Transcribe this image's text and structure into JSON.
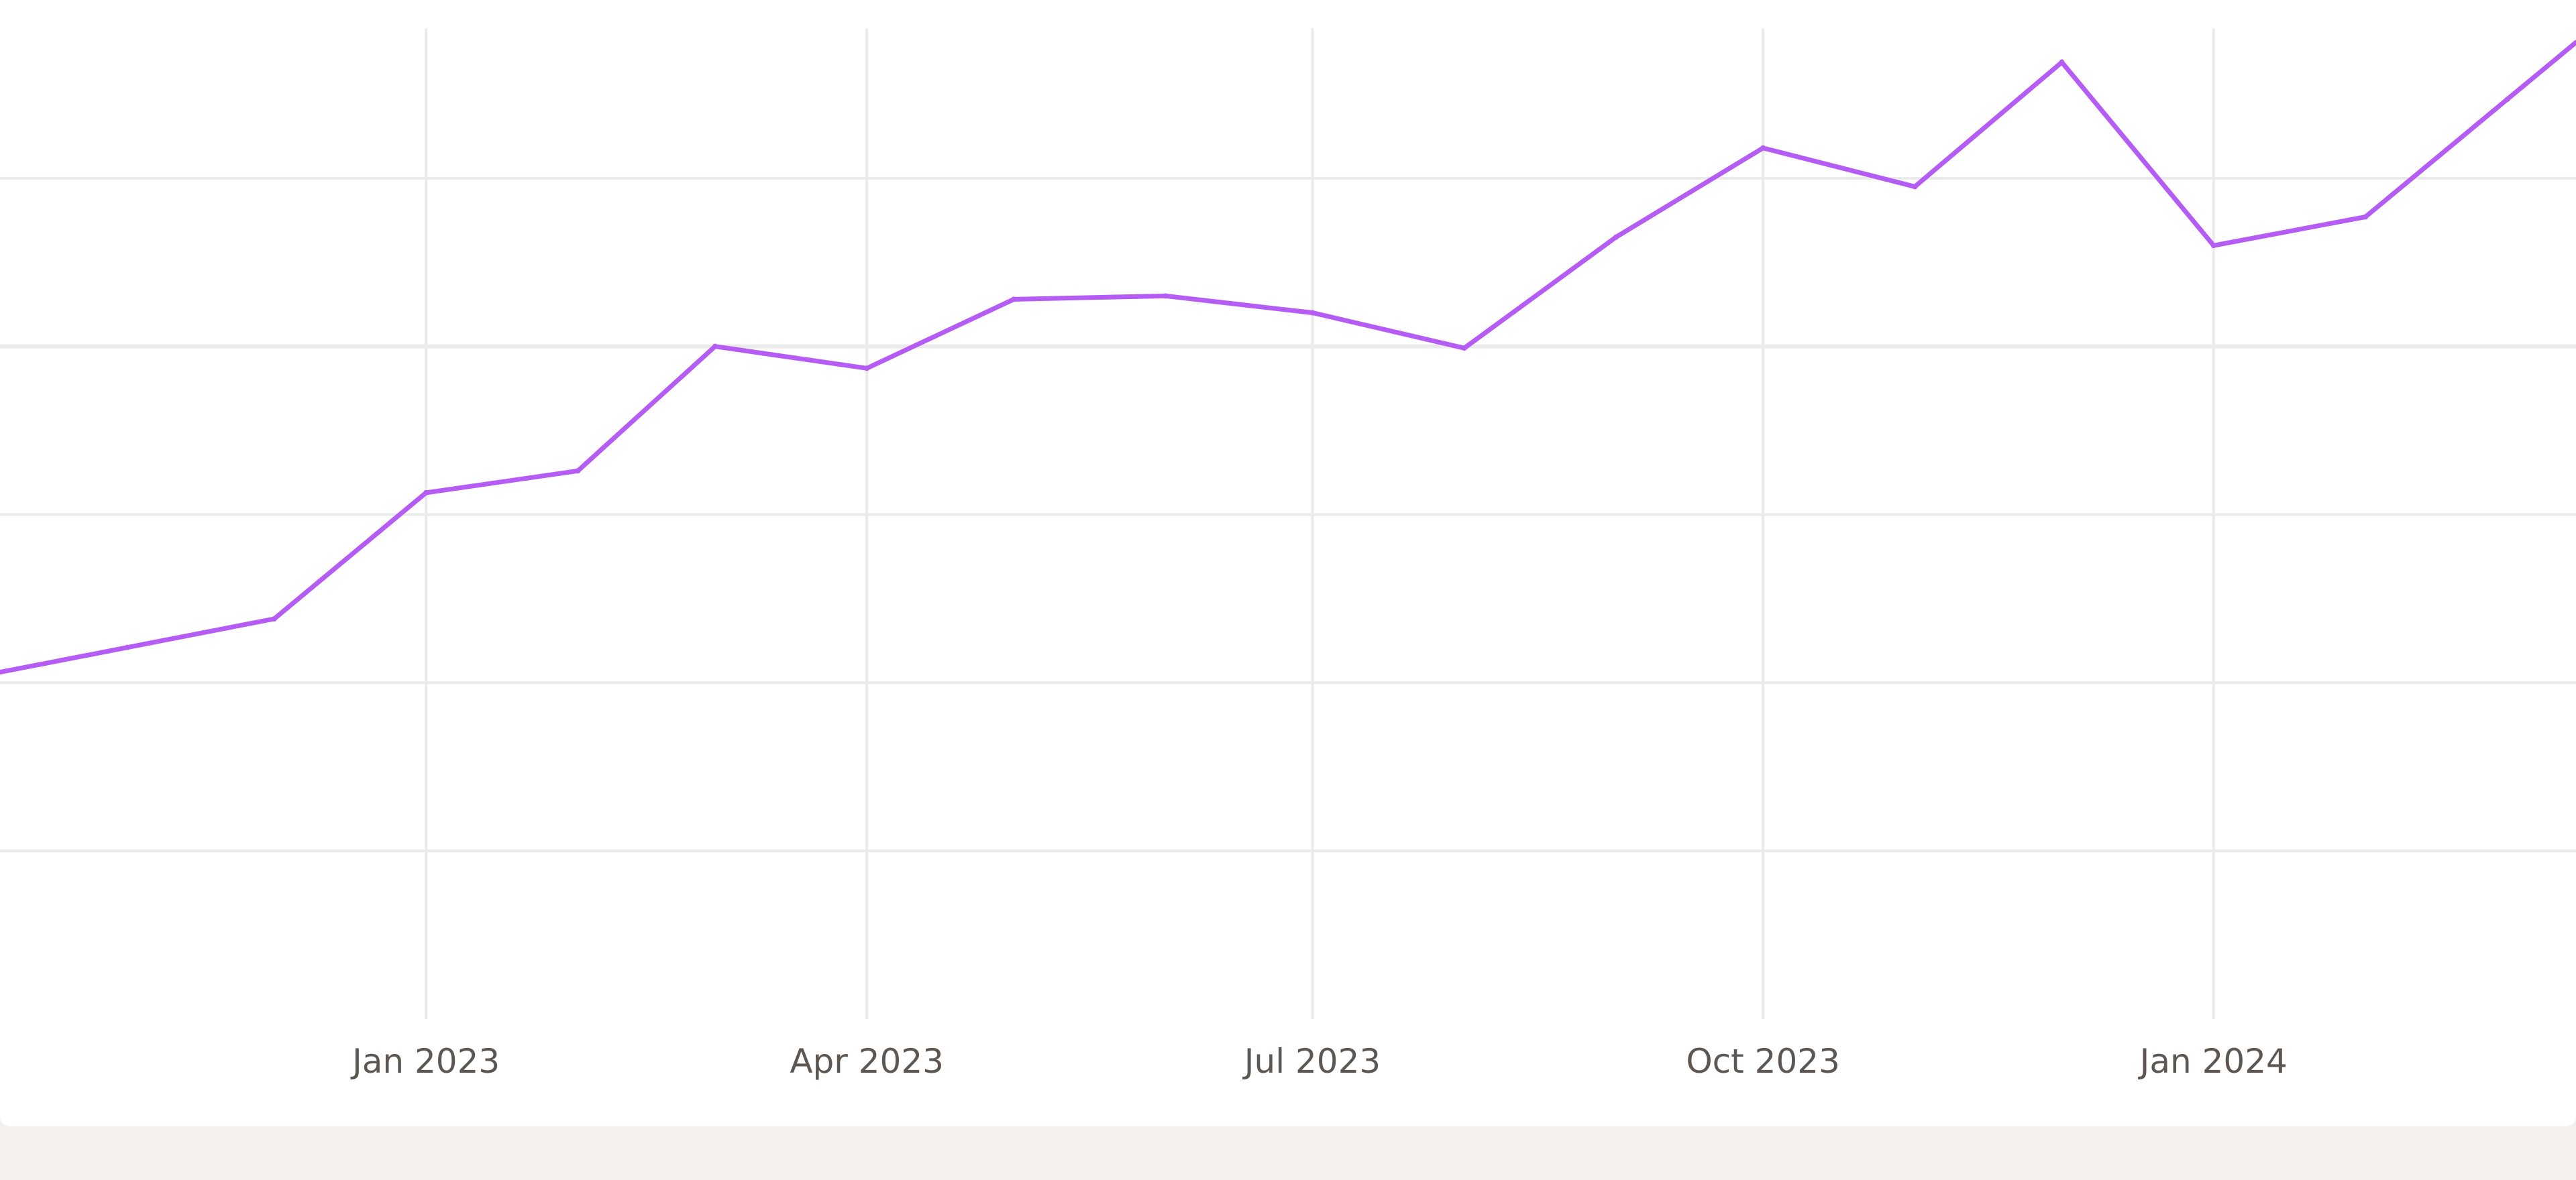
{
  "chart_data": {
    "type": "line",
    "title": "",
    "xlabel": "",
    "ylabel": "",
    "x_axis": {
      "type": "date",
      "range": [
        "2022-10-06",
        "2024-03-15"
      ],
      "tick_labels": [
        {
          "date": "2023-01-01",
          "label": "Jan 2023"
        },
        {
          "date": "2023-04-01",
          "label": "Apr 2023"
        },
        {
          "date": "2023-07-01",
          "label": "Jul 2023"
        },
        {
          "date": "2023-10-01",
          "label": "Oct 2023"
        },
        {
          "date": "2024-01-01",
          "label": "Jan 2024"
        }
      ]
    },
    "y_axis": {
      "range": [
        0,
        6
      ],
      "gridlines": [
        1,
        2,
        3,
        4,
        5
      ],
      "tick_labels_visible": false
    },
    "grid": true,
    "legend": "none",
    "colors": {
      "line": "#b55cf5",
      "grid": "#ebebeb",
      "background": "#ffffff",
      "page": "#f3f0ed"
    },
    "series": [
      {
        "points": [
          {
            "x": "2022-11-01",
            "y": 2.21
          },
          {
            "x": "2022-12-01",
            "y": 2.38
          },
          {
            "x": "2023-01-01",
            "y": 3.13
          },
          {
            "x": "2023-02-01",
            "y": 3.26
          },
          {
            "x": "2023-03-01",
            "y": 4.0
          },
          {
            "x": "2023-04-01",
            "y": 3.87
          },
          {
            "x": "2023-05-01",
            "y": 4.28
          },
          {
            "x": "2023-06-01",
            "y": 4.3
          },
          {
            "x": "2023-07-01",
            "y": 4.2
          },
          {
            "x": "2023-08-01",
            "y": 3.99
          },
          {
            "x": "2023-09-01",
            "y": 4.65
          },
          {
            "x": "2023-10-01",
            "y": 5.18
          },
          {
            "x": "2023-11-01",
            "y": 4.95
          },
          {
            "x": "2023-12-01",
            "y": 5.69
          },
          {
            "x": "2024-01-01",
            "y": 4.6
          },
          {
            "x": "2024-02-01",
            "y": 4.77
          },
          {
            "x": "2024-03-01",
            "y": 5.47
          }
        ]
      }
    ]
  }
}
